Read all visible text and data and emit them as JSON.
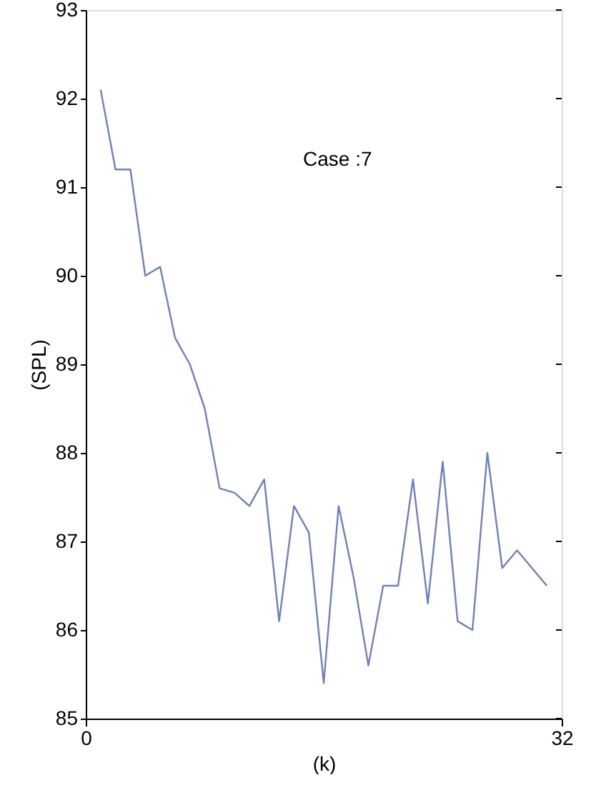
{
  "chart_data": {
    "type": "line",
    "xlabel": "(k)",
    "ylabel": "(SPL)",
    "annotations": [
      "Case :7"
    ],
    "x": [
      1,
      2,
      3,
      4,
      5,
      6,
      7,
      8,
      9,
      10,
      11,
      12,
      13,
      14,
      15,
      16,
      17,
      18,
      19,
      20,
      21,
      22,
      23,
      24,
      25,
      26,
      27,
      28,
      29,
      31
    ],
    "series": [
      {
        "color": "#6f7fbf",
        "values": [
          92.1,
          91.2,
          91.2,
          90.0,
          90.1,
          89.3,
          89.0,
          88.5,
          87.6,
          87.55,
          87.4,
          87.7,
          86.1,
          87.4,
          87.1,
          85.4,
          87.4,
          86.6,
          85.6,
          86.5,
          86.5,
          87.7,
          86.3,
          87.9,
          86.1,
          86.0,
          88.0,
          86.7,
          86.9,
          86.5
        ]
      }
    ],
    "xlim": [
      0,
      32
    ],
    "xticks": [
      0,
      32
    ],
    "ylim": [
      85,
      93
    ],
    "yticks": [
      85,
      86,
      87,
      88,
      89,
      90,
      91,
      92,
      93
    ],
    "grid": false,
    "marker": "none",
    "line_style": "solid"
  }
}
